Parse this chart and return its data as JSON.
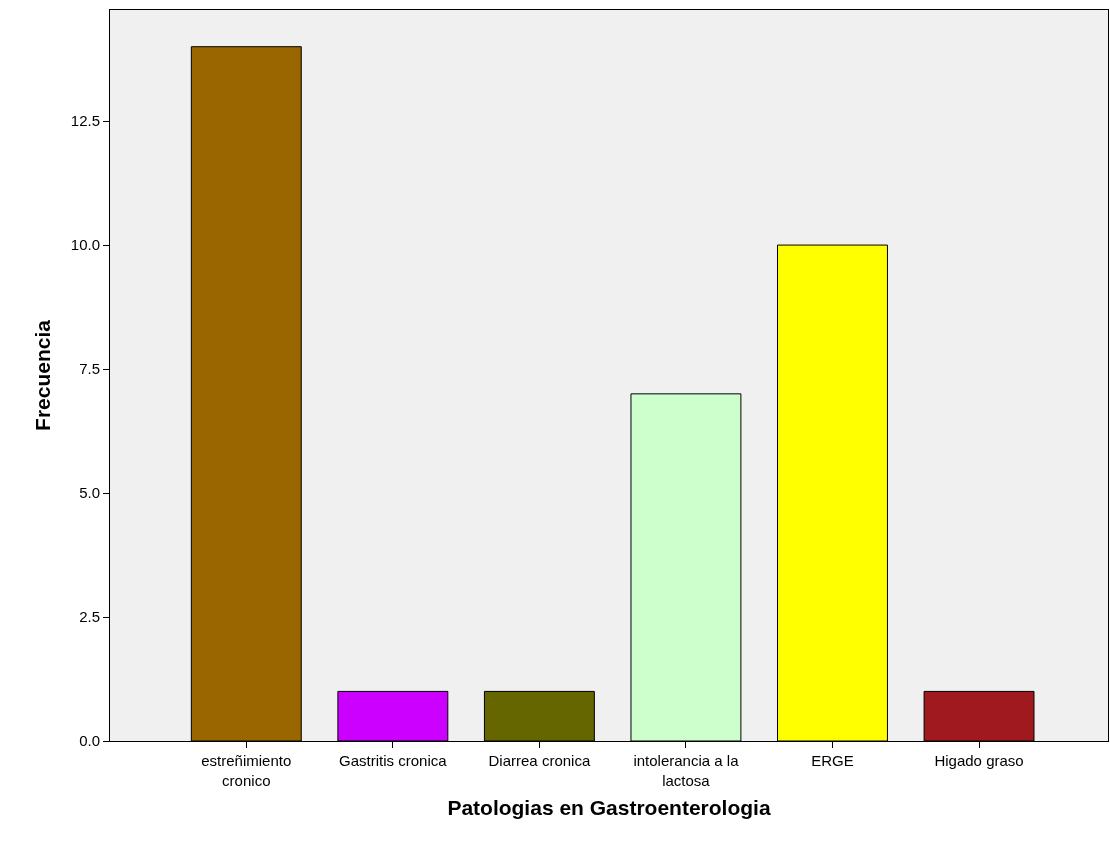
{
  "chart_data": {
    "type": "bar",
    "xlabel": "Patologias en Gastroenterologia",
    "ylabel": "Frecuencia",
    "categories": [
      "estreñimiento cronico",
      "Gastritis cronica",
      "Diarrea cronica",
      "intolerancia a la lactosa",
      "ERGE",
      "Higado graso"
    ],
    "values": [
      14,
      1,
      1,
      7,
      10,
      1
    ],
    "colors": [
      "#996600",
      "#cc00ff",
      "#666600",
      "#ccffcc",
      "#ffff00",
      "#a0191e"
    ],
    "ylim": [
      0,
      14.74
    ],
    "yticks": [
      {
        "value": 0,
        "label": "0.0"
      },
      {
        "value": 2.5,
        "label": "2.5"
      },
      {
        "value": 5,
        "label": "5.0"
      },
      {
        "value": 7.5,
        "label": "7.5"
      },
      {
        "value": 10,
        "label": "10.0"
      },
      {
        "value": 12.5,
        "label": "12.5"
      }
    ],
    "grid": false
  }
}
